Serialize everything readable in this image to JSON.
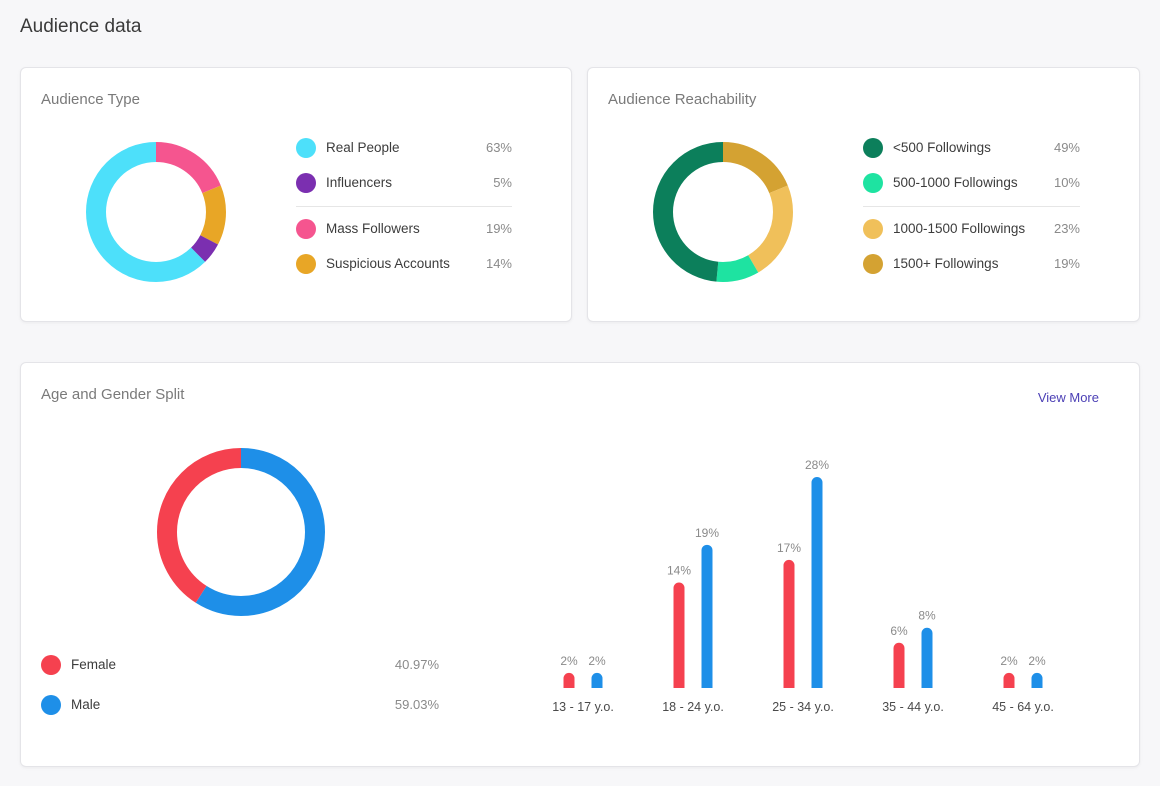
{
  "page": {
    "title": "Audience data"
  },
  "audience_type": {
    "title": "Audience Type",
    "items": [
      {
        "label": "Real People",
        "pct": "63%",
        "value": 63,
        "color": "#4de0fa"
      },
      {
        "label": "Influencers",
        "pct": "5%",
        "value": 5,
        "color": "#7b2fb0"
      },
      {
        "label": "Mass Followers",
        "pct": "19%",
        "value": 19,
        "color": "#f5558f"
      },
      {
        "label": "Suspicious Accounts",
        "pct": "14%",
        "value": 14,
        "color": "#e8a626"
      }
    ]
  },
  "audience_reachability": {
    "title": "Audience Reachability",
    "items": [
      {
        "label": "<500 Followings",
        "pct": "49%",
        "value": 49,
        "color": "#0c7f5b"
      },
      {
        "label": "500-1000 Followings",
        "pct": "10%",
        "value": 10,
        "color": "#1ee3a1"
      },
      {
        "label": "1000-1500 Followings",
        "pct": "23%",
        "value": 23,
        "color": "#f0c05a"
      },
      {
        "label": "1500+ Followings",
        "pct": "19%",
        "value": 19,
        "color": "#d4a232"
      }
    ]
  },
  "age_gender": {
    "title": "Age and Gender Split",
    "view_more": "View More",
    "gender": [
      {
        "label": "Female",
        "pct": "40.97%",
        "value": 40.97,
        "color": "#f5414f"
      },
      {
        "label": "Male",
        "pct": "59.03%",
        "value": 59.03,
        "color": "#1e8fe8"
      }
    ]
  },
  "chart_data": {
    "type": "bar",
    "categories": [
      "13 - 17 y.o.",
      "18 - 24 y.o.",
      "25 - 34 y.o.",
      "35 - 44 y.o.",
      "45 - 64 y.o."
    ],
    "series": [
      {
        "name": "Female",
        "color": "#f5414f",
        "values": [
          2,
          14,
          17,
          6,
          2
        ],
        "labels": [
          "2%",
          "14%",
          "17%",
          "6%",
          "2%"
        ]
      },
      {
        "name": "Male",
        "color": "#1e8fe8",
        "values": [
          2,
          19,
          28,
          8,
          2
        ],
        "labels": [
          "2%",
          "19%",
          "28%",
          "8%",
          "2%"
        ]
      }
    ],
    "ylim": [
      0,
      28
    ],
    "grid": false
  }
}
